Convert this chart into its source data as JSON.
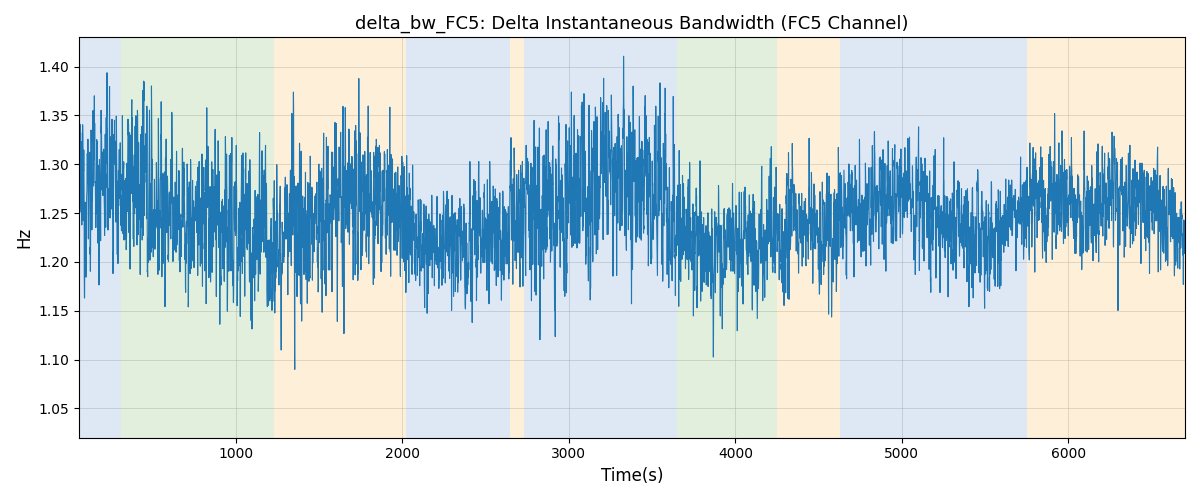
{
  "title": "delta_bw_FC5: Delta Instantaneous Bandwidth (FC5 Channel)",
  "xlabel": "Time(s)",
  "ylabel": "Hz",
  "xlim": [
    60,
    6700
  ],
  "ylim": [
    1.02,
    1.43
  ],
  "line_color": "#1f77b4",
  "line_width": 0.8,
  "bg_bands": [
    {
      "xstart": 60,
      "xend": 310,
      "color": "#aec6e8",
      "alpha": 0.4
    },
    {
      "xstart": 310,
      "xend": 1230,
      "color": "#b5d8a8",
      "alpha": 0.4
    },
    {
      "xstart": 1230,
      "xend": 2020,
      "color": "#fdd9a0",
      "alpha": 0.4
    },
    {
      "xstart": 2020,
      "xend": 2650,
      "color": "#aec6e8",
      "alpha": 0.4
    },
    {
      "xstart": 2650,
      "xend": 2730,
      "color": "#fdd9a0",
      "alpha": 0.4
    },
    {
      "xstart": 2730,
      "xend": 3650,
      "color": "#aec6e8",
      "alpha": 0.4
    },
    {
      "xstart": 3650,
      "xend": 4250,
      "color": "#b5d8a8",
      "alpha": 0.4
    },
    {
      "xstart": 4250,
      "xend": 4630,
      "color": "#fdd9a0",
      "alpha": 0.4
    },
    {
      "xstart": 4630,
      "xend": 5750,
      "color": "#aec6e8",
      "alpha": 0.4
    },
    {
      "xstart": 5750,
      "xend": 6700,
      "color": "#fdd9a0",
      "alpha": 0.4
    }
  ],
  "yticks": [
    1.05,
    1.1,
    1.15,
    1.2,
    1.25,
    1.3,
    1.35,
    1.4
  ],
  "xticks": [
    1000,
    2000,
    3000,
    4000,
    5000,
    6000
  ],
  "figsize": [
    12,
    5
  ],
  "dpi": 100
}
